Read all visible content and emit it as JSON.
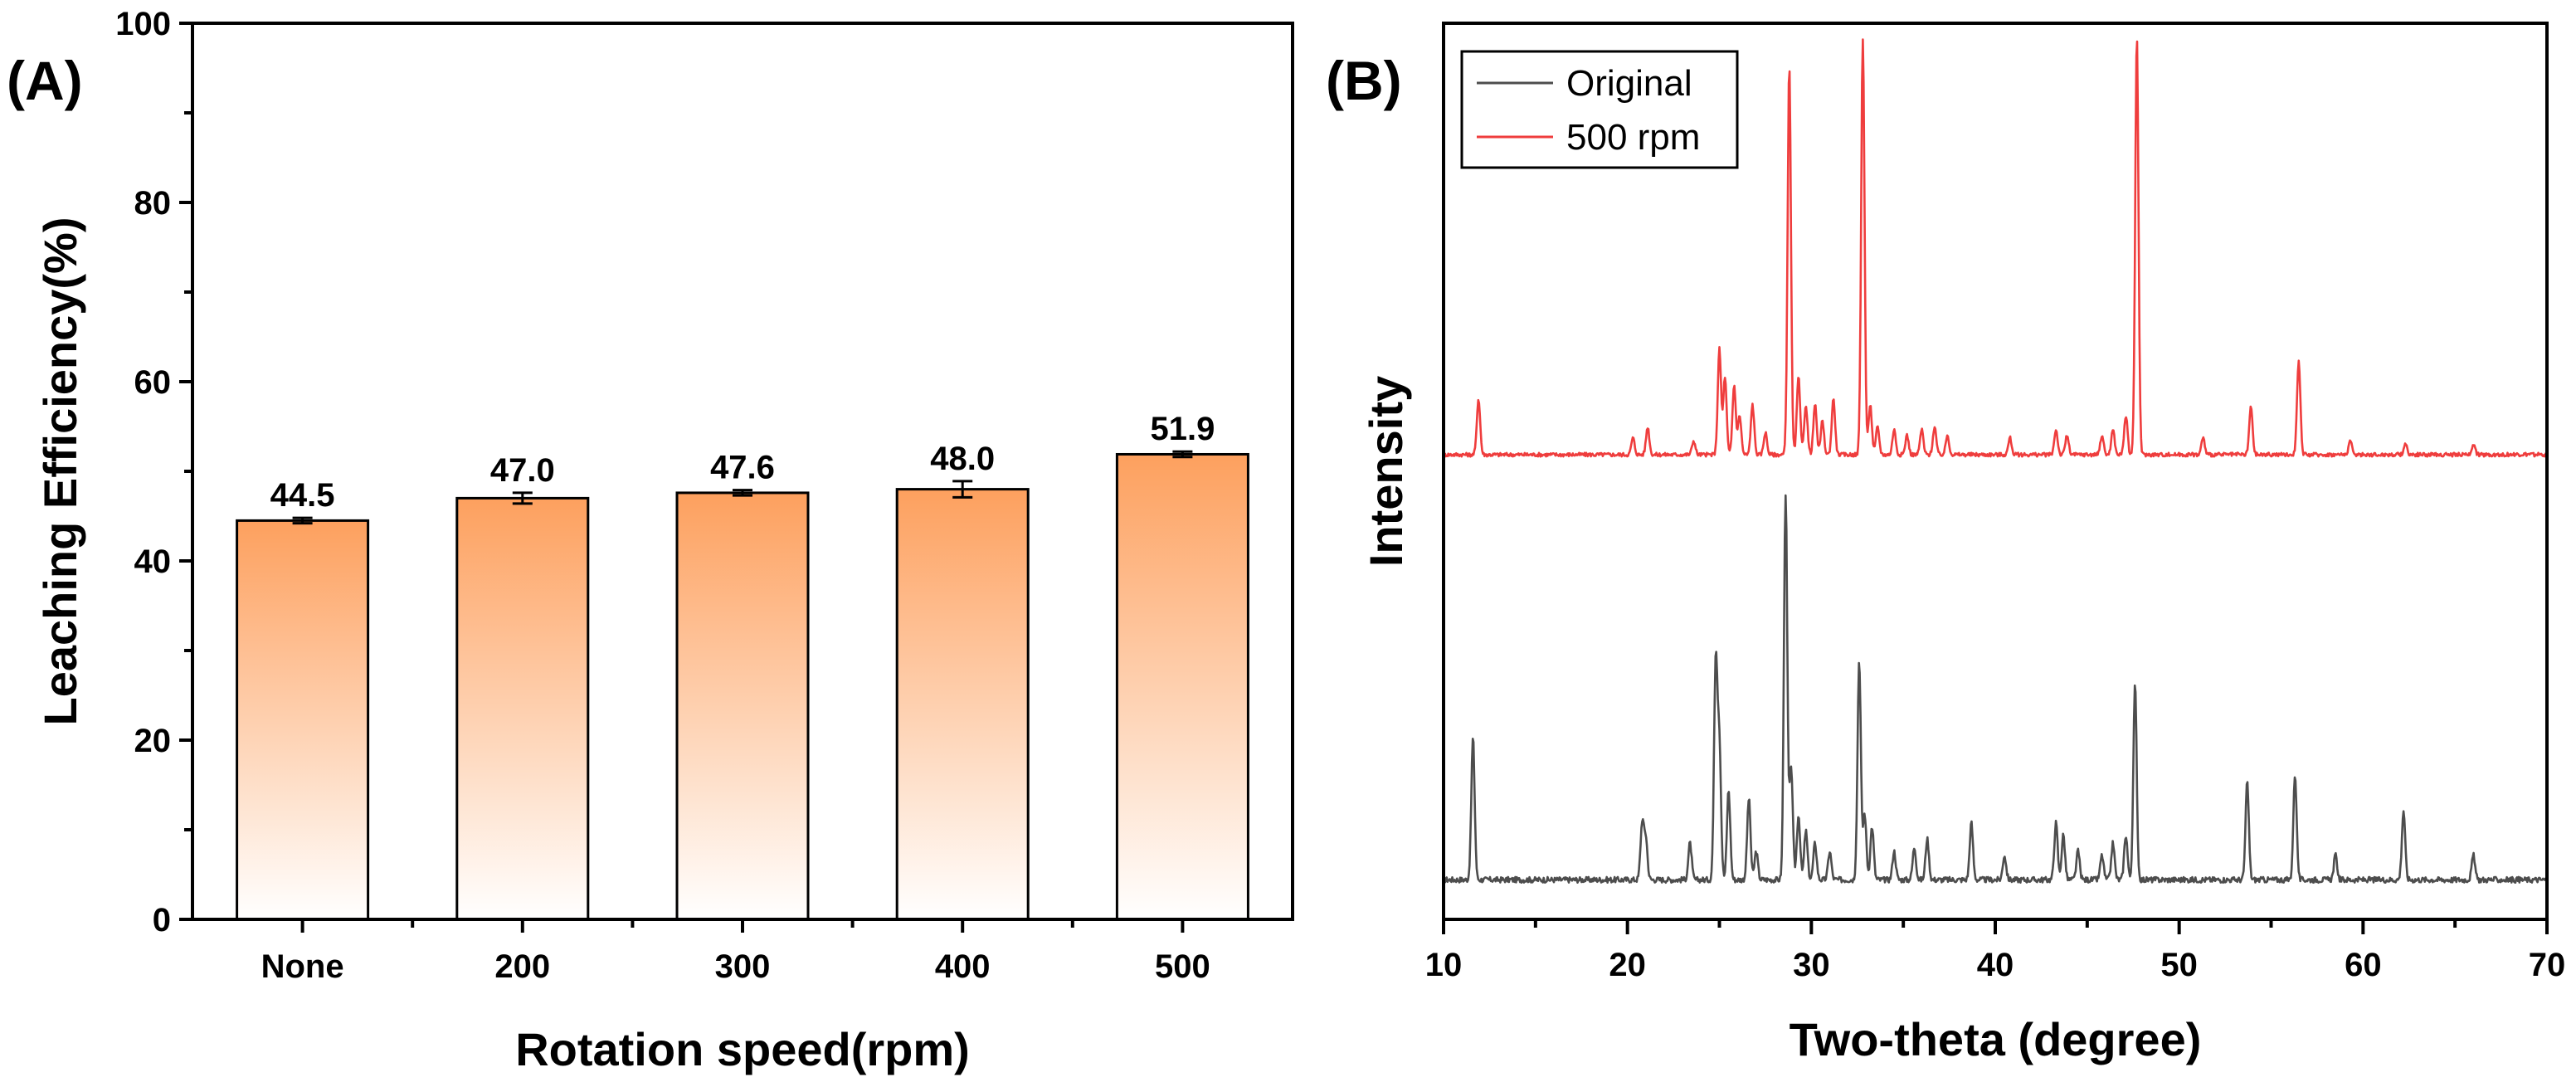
{
  "chart_data": [
    {
      "type": "bar",
      "panel_label": "(A)",
      "categories": [
        "None",
        "200",
        "300",
        "400",
        "500"
      ],
      "values": [
        44.5,
        47.0,
        47.6,
        48.0,
        51.9
      ],
      "value_labels": [
        "44.5",
        "47.0",
        "47.6",
        "48.0",
        "51.9"
      ],
      "errors": [
        0.3,
        0.6,
        0.3,
        0.9,
        0.3
      ],
      "xlabel": "Rotation speed(rpm)",
      "ylabel": "Leaching Efficiency(%)",
      "ylim": [
        0,
        100
      ],
      "yticks": [
        0,
        20,
        40,
        60,
        80,
        100
      ],
      "gradient_top": "#fda05e",
      "gradient_bottom": "#ffffff"
    },
    {
      "type": "line",
      "panel_label": "(B)",
      "xlabel": "Two-theta (degree)",
      "ylabel": "Intensity",
      "xlim": [
        10,
        70
      ],
      "xticks": [
        10,
        20,
        30,
        40,
        50,
        60,
        70
      ],
      "legend_position": "top-left",
      "series": [
        {
          "name": "Original",
          "color": "#4d4d4d",
          "baseline": 3,
          "peaks": [
            [
              11.6,
              35
            ],
            [
              20.8,
              14
            ],
            [
              21.0,
              10
            ],
            [
              23.4,
              9
            ],
            [
              24.8,
              54
            ],
            [
              25.0,
              33
            ],
            [
              25.5,
              22
            ],
            [
              26.6,
              20
            ],
            [
              27.0,
              7
            ],
            [
              28.6,
              95
            ],
            [
              28.9,
              28
            ],
            [
              29.3,
              16
            ],
            [
              29.7,
              12
            ],
            [
              30.2,
              9
            ],
            [
              31.0,
              7
            ],
            [
              32.6,
              54
            ],
            [
              32.9,
              16
            ],
            [
              33.3,
              13
            ],
            [
              34.5,
              7
            ],
            [
              35.6,
              8
            ],
            [
              36.3,
              10
            ],
            [
              38.7,
              14
            ],
            [
              40.5,
              6
            ],
            [
              43.3,
              14
            ],
            [
              43.7,
              11
            ],
            [
              44.5,
              7
            ],
            [
              45.8,
              6
            ],
            [
              46.4,
              9
            ],
            [
              47.1,
              11
            ],
            [
              47.6,
              48
            ],
            [
              53.7,
              24
            ],
            [
              56.3,
              26
            ],
            [
              58.5,
              6
            ],
            [
              62.2,
              17
            ],
            [
              66.0,
              6
            ]
          ]
        },
        {
          "name": "500 rpm",
          "color": "#ef3d3d",
          "baseline": 3,
          "peaks": [
            [
              11.9,
              20
            ],
            [
              20.3,
              6
            ],
            [
              21.1,
              10
            ],
            [
              23.6,
              5
            ],
            [
              25.0,
              38
            ],
            [
              25.3,
              28
            ],
            [
              25.8,
              25
            ],
            [
              26.1,
              14
            ],
            [
              26.8,
              18
            ],
            [
              27.5,
              8
            ],
            [
              28.8,
              140
            ],
            [
              29.3,
              28
            ],
            [
              29.7,
              18
            ],
            [
              30.2,
              18
            ],
            [
              30.6,
              12
            ],
            [
              31.2,
              20
            ],
            [
              32.8,
              150
            ],
            [
              33.2,
              18
            ],
            [
              33.6,
              10
            ],
            [
              34.5,
              9
            ],
            [
              35.2,
              7
            ],
            [
              36.0,
              9
            ],
            [
              36.7,
              10
            ],
            [
              37.4,
              7
            ],
            [
              40.8,
              6
            ],
            [
              43.3,
              9
            ],
            [
              43.9,
              7
            ],
            [
              45.8,
              7
            ],
            [
              46.4,
              9
            ],
            [
              47.1,
              14
            ],
            [
              47.7,
              150
            ],
            [
              51.3,
              6
            ],
            [
              53.9,
              17
            ],
            [
              56.5,
              34
            ],
            [
              59.3,
              5
            ],
            [
              62.3,
              4
            ],
            [
              66.0,
              4
            ]
          ]
        }
      ]
    }
  ]
}
